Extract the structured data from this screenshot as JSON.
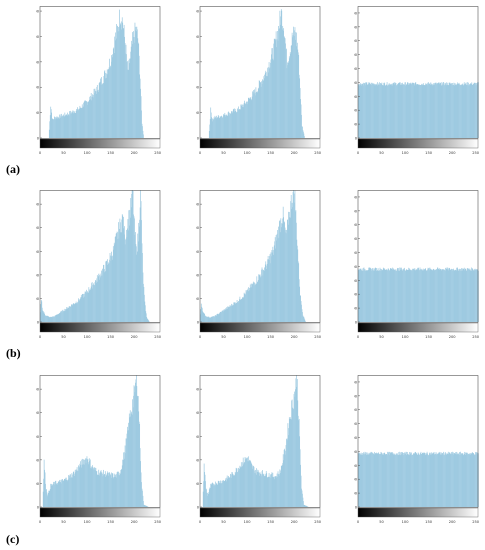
{
  "figure": {
    "colors": {
      "bar": "#9ecae1",
      "frame": "#555555",
      "tick_text": "#333333"
    },
    "rows": [
      {
        "label": "(a)"
      },
      {
        "label": "(b)"
      },
      {
        "label": "(c)"
      }
    ]
  },
  "chart_data": [
    {
      "id": "a-original",
      "row": 0,
      "col": 0,
      "type": "bar",
      "xlim": [
        0,
        255
      ],
      "ylim": [
        0,
        2600
      ],
      "xticks": [
        0,
        50,
        100,
        150,
        200,
        250
      ],
      "yticks": [
        0,
        500,
        1000,
        1500,
        2000,
        2500
      ],
      "title": "",
      "xlabel": "",
      "ylabel": "",
      "grid": false,
      "colorbar": "grayscale",
      "x": [
        0,
        10,
        18,
        22,
        26,
        30,
        40,
        50,
        60,
        80,
        100,
        120,
        140,
        150,
        158,
        164,
        170,
        175,
        180,
        186,
        190,
        196,
        200,
        204,
        208,
        212,
        216,
        220,
        224,
        230,
        235,
        240,
        255
      ],
      "values": [
        0,
        0,
        0,
        650,
        350,
        400,
        420,
        450,
        480,
        560,
        720,
        950,
        1300,
        1550,
        1900,
        2150,
        2450,
        2300,
        1900,
        1300,
        1500,
        1900,
        2050,
        2150,
        1900,
        1200,
        300,
        0,
        0,
        0,
        0,
        0,
        0
      ]
    },
    {
      "id": "a-processed",
      "row": 0,
      "col": 1,
      "type": "bar",
      "xlim": [
        0,
        255
      ],
      "ylim": [
        0,
        2600
      ],
      "xticks": [
        0,
        50,
        100,
        150,
        200,
        250
      ],
      "yticks": [
        0,
        500,
        1000,
        1500,
        2000,
        2500
      ],
      "title": "",
      "xlabel": "",
      "ylabel": "",
      "grid": false,
      "colorbar": "grayscale",
      "x": [
        0,
        18,
        22,
        26,
        30,
        50,
        80,
        100,
        120,
        140,
        155,
        165,
        172,
        178,
        184,
        190,
        196,
        202,
        208,
        212,
        216,
        222,
        230,
        255
      ],
      "values": [
        0,
        0,
        550,
        350,
        400,
        450,
        560,
        720,
        950,
        1300,
        1700,
        2100,
        2450,
        2200,
        1500,
        1700,
        2000,
        2100,
        1700,
        1000,
        250,
        0,
        0,
        0
      ]
    },
    {
      "id": "a-equalized",
      "row": 0,
      "col": 2,
      "type": "bar",
      "xlim": [
        0,
        255
      ],
      "ylim": [
        0,
        1900
      ],
      "xticks": [
        0,
        50,
        100,
        150,
        200,
        250
      ],
      "yticks": [
        0,
        200,
        400,
        600,
        800,
        1000,
        1200,
        1400,
        1600,
        1800
      ],
      "title": "",
      "xlabel": "",
      "ylabel": "",
      "grid": false,
      "colorbar": "grayscale",
      "x": [
        0,
        255
      ],
      "values": [
        780,
        780
      ],
      "noise": 25
    },
    {
      "id": "b-original",
      "row": 1,
      "col": 0,
      "type": "bar",
      "xlim": [
        0,
        255
      ],
      "ylim": [
        0,
        2800
      ],
      "xticks": [
        0,
        50,
        100,
        150,
        200,
        250
      ],
      "yticks": [
        0,
        500,
        1000,
        1500,
        2000,
        2500
      ],
      "title": "",
      "xlabel": "",
      "ylabel": "",
      "grid": false,
      "colorbar": "grayscale",
      "x": [
        0,
        2,
        5,
        10,
        20,
        30,
        50,
        80,
        100,
        120,
        140,
        155,
        165,
        175,
        180,
        186,
        192,
        196,
        200,
        204,
        208,
        213,
        218,
        222,
        226,
        232,
        240,
        255
      ],
      "values": [
        200,
        500,
        250,
        150,
        100,
        120,
        250,
        450,
        650,
        900,
        1200,
        1500,
        1900,
        2200,
        1800,
        2100,
        2400,
        2800,
        2000,
        1500,
        1800,
        2800,
        1000,
        400,
        100,
        0,
        0,
        0
      ]
    },
    {
      "id": "b-processed",
      "row": 1,
      "col": 1,
      "type": "bar",
      "xlim": [
        0,
        255
      ],
      "ylim": [
        0,
        2800
      ],
      "xticks": [
        0,
        50,
        100,
        150,
        200,
        250
      ],
      "yticks": [
        0,
        500,
        1000,
        1500,
        2000,
        2500
      ],
      "title": "",
      "xlabel": "",
      "ylabel": "",
      "grid": false,
      "colorbar": "grayscale",
      "x": [
        0,
        2,
        6,
        12,
        20,
        30,
        50,
        80,
        100,
        120,
        140,
        155,
        165,
        175,
        182,
        188,
        194,
        200,
        206,
        212,
        218,
        224,
        230,
        240,
        255
      ],
      "values": [
        150,
        400,
        200,
        120,
        100,
        120,
        250,
        450,
        650,
        900,
        1200,
        1500,
        1900,
        2300,
        1800,
        2200,
        2600,
        2800,
        1700,
        600,
        150,
        0,
        0,
        0,
        0
      ]
    },
    {
      "id": "b-equalized",
      "row": 1,
      "col": 2,
      "type": "bar",
      "xlim": [
        0,
        255
      ],
      "ylim": [
        0,
        1900
      ],
      "xticks": [
        0,
        50,
        100,
        150,
        200,
        250
      ],
      "yticks": [
        0,
        200,
        400,
        600,
        800,
        1000,
        1200,
        1400,
        1600,
        1800
      ],
      "title": "",
      "xlabel": "",
      "ylabel": "",
      "grid": false,
      "colorbar": "grayscale",
      "x": [
        0,
        255
      ],
      "values": [
        760,
        760
      ],
      "noise": 25
    },
    {
      "id": "c-original",
      "row": 2,
      "col": 0,
      "type": "bar",
      "xlim": [
        0,
        255
      ],
      "ylim": [
        0,
        2800
      ],
      "xticks": [
        0,
        50,
        100,
        150,
        200,
        250
      ],
      "yticks": [
        0,
        500,
        1000,
        1500,
        2000,
        2500
      ],
      "title": "",
      "xlabel": "",
      "ylabel": "",
      "grid": false,
      "colorbar": "grayscale",
      "x": [
        0,
        5,
        8,
        12,
        16,
        22,
        30,
        50,
        70,
        90,
        100,
        110,
        120,
        140,
        160,
        170,
        180,
        190,
        200,
        205,
        210,
        215,
        220,
        230,
        255
      ],
      "values": [
        0,
        0,
        950,
        400,
        250,
        450,
        500,
        560,
        700,
        950,
        1050,
        850,
        750,
        700,
        650,
        750,
        1200,
        1900,
        2400,
        2800,
        1900,
        500,
        50,
        0,
        0
      ]
    },
    {
      "id": "c-processed",
      "row": 2,
      "col": 1,
      "type": "bar",
      "xlim": [
        0,
        255
      ],
      "ylim": [
        0,
        2800
      ],
      "xticks": [
        0,
        50,
        100,
        150,
        200,
        250
      ],
      "yticks": [
        0,
        500,
        1000,
        1500,
        2000,
        2500
      ],
      "title": "",
      "xlabel": "",
      "ylabel": "",
      "grid": false,
      "colorbar": "grayscale",
      "x": [
        0,
        5,
        8,
        12,
        16,
        22,
        30,
        50,
        70,
        90,
        100,
        110,
        120,
        140,
        160,
        170,
        180,
        190,
        200,
        205,
        210,
        215,
        220,
        230,
        255
      ],
      "values": [
        0,
        0,
        900,
        400,
        250,
        450,
        500,
        560,
        700,
        950,
        1050,
        850,
        750,
        700,
        650,
        750,
        1200,
        1900,
        2400,
        2800,
        1700,
        400,
        50,
        0,
        0
      ]
    },
    {
      "id": "c-equalized",
      "row": 2,
      "col": 2,
      "type": "bar",
      "xlim": [
        0,
        255
      ],
      "ylim": [
        0,
        1900
      ],
      "xticks": [
        0,
        50,
        100,
        150,
        200,
        250
      ],
      "yticks": [
        0,
        200,
        400,
        600,
        800,
        1000,
        1200,
        1400,
        1600,
        1800
      ],
      "title": "",
      "xlabel": "",
      "ylabel": "",
      "grid": false,
      "colorbar": "grayscale",
      "x": [
        0,
        255
      ],
      "values": [
        770,
        770
      ],
      "noise": 25
    }
  ]
}
